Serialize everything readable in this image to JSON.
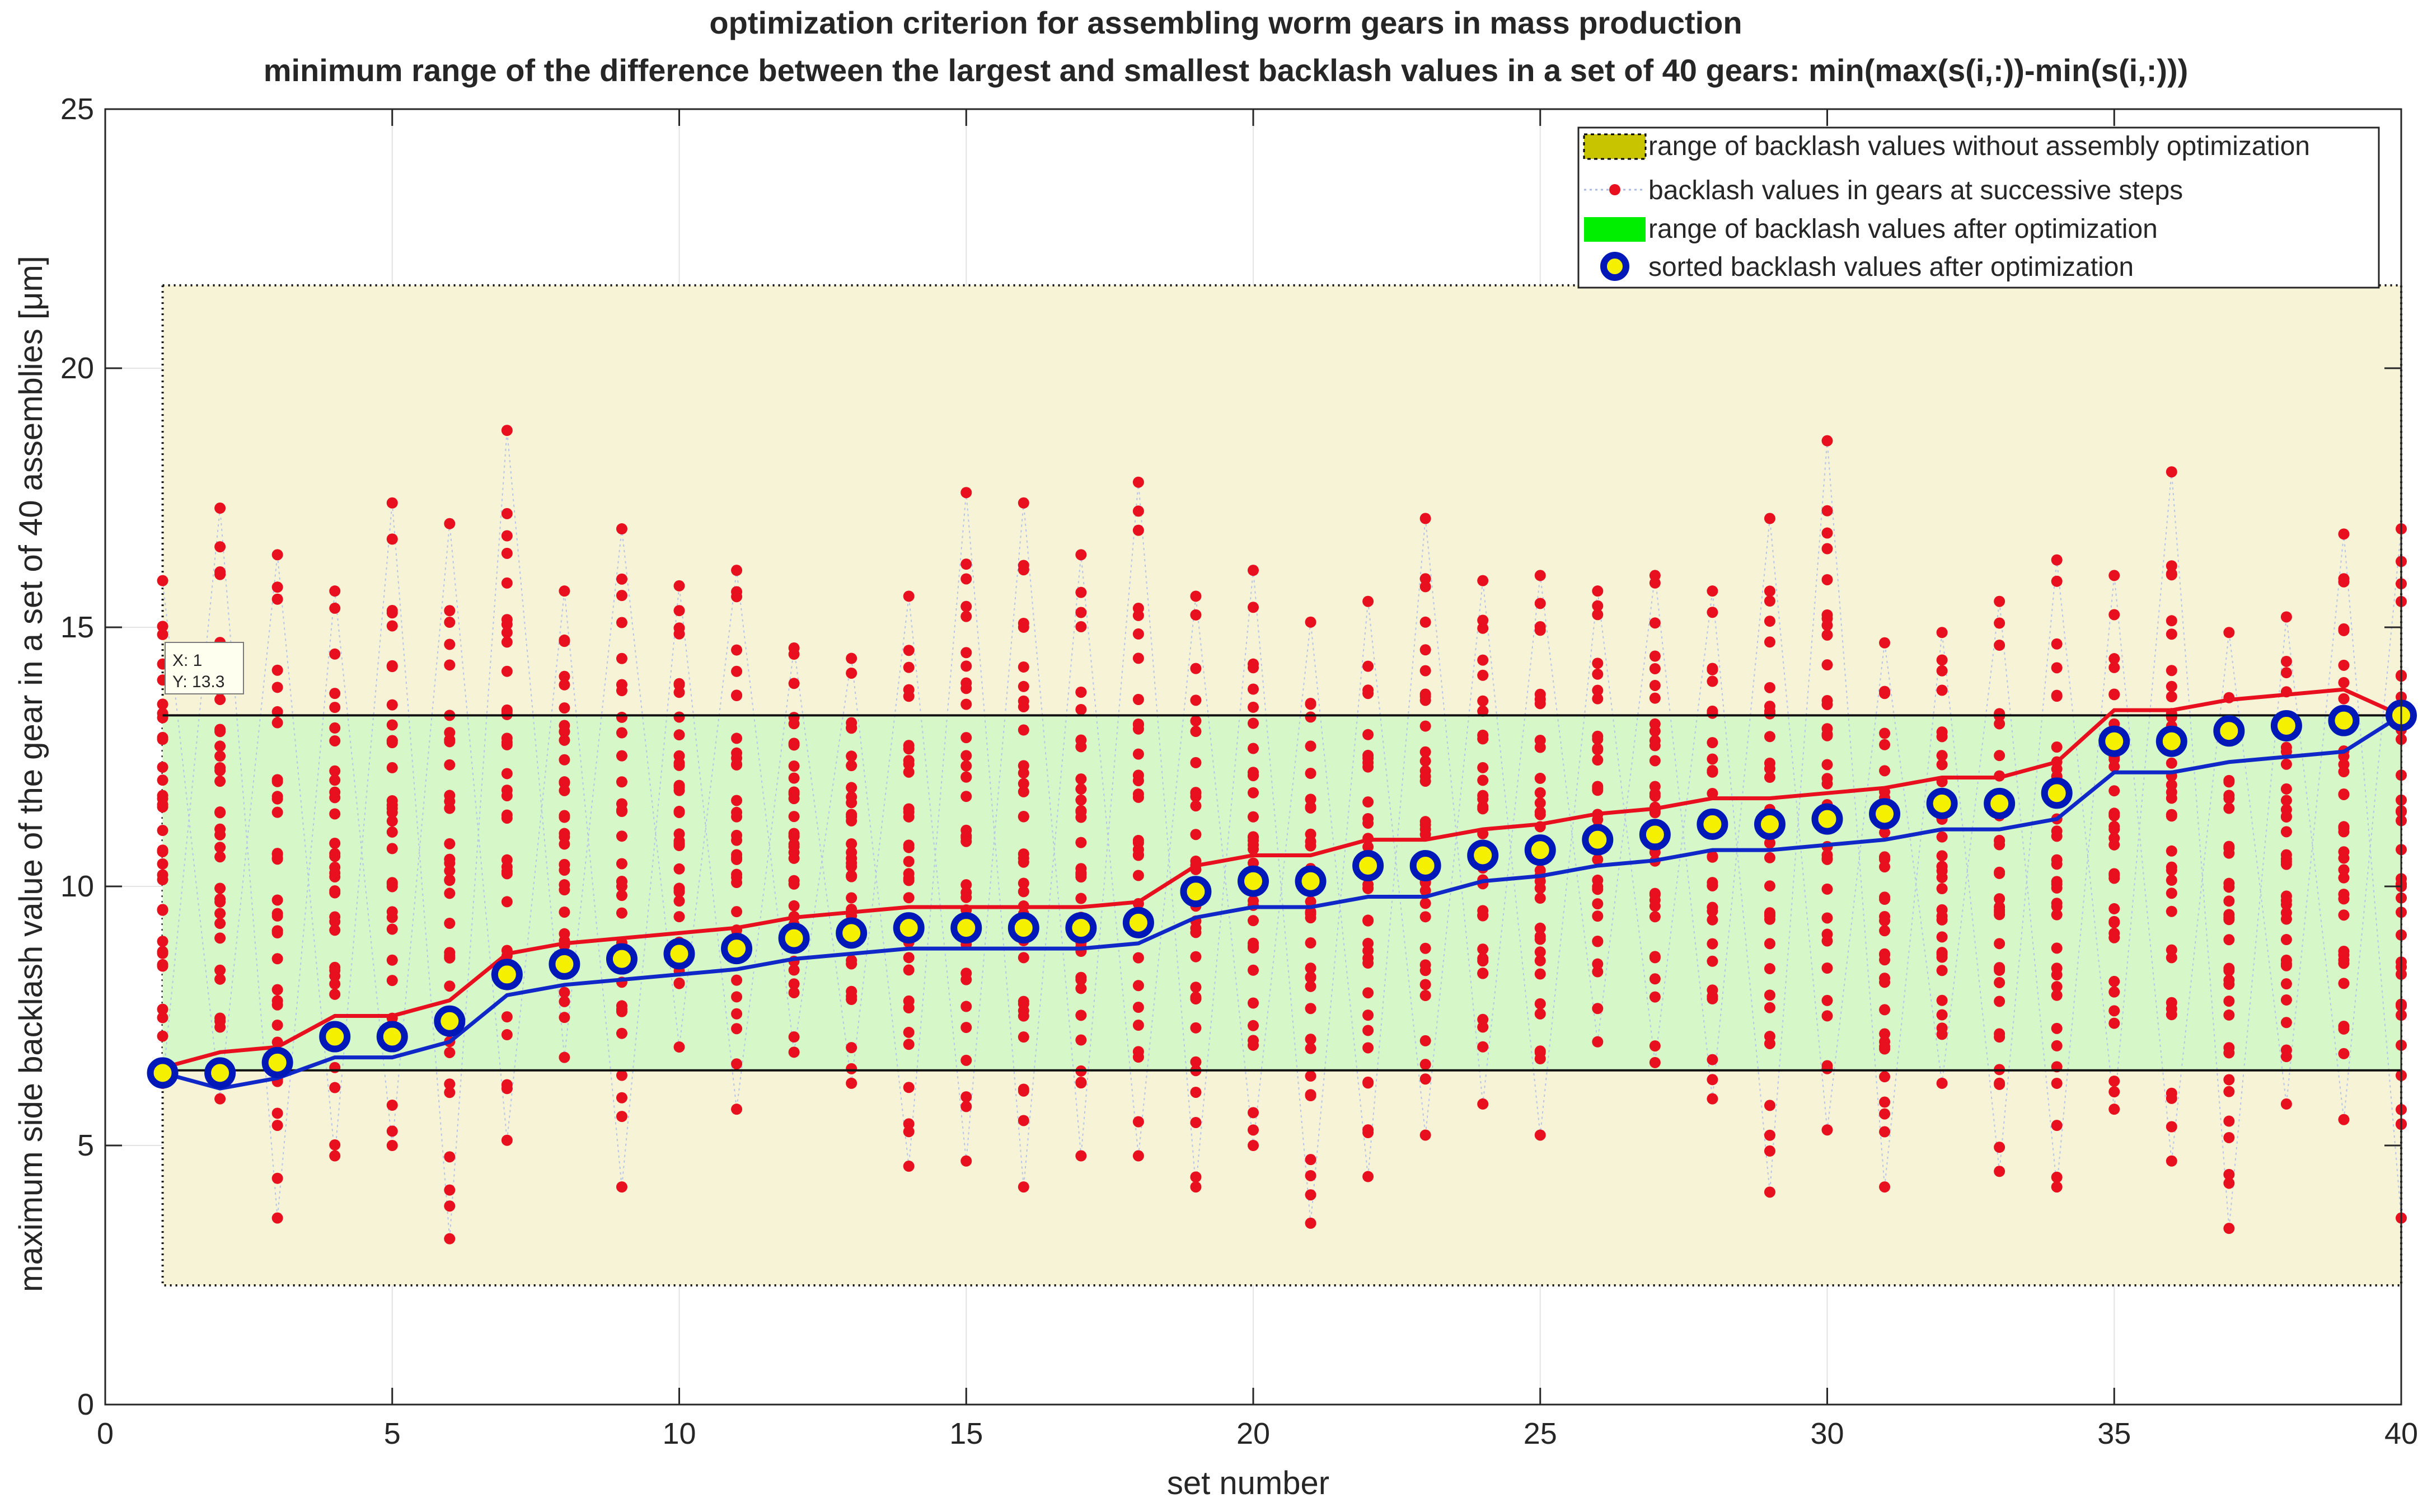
{
  "chart_data": {
    "type": "line",
    "title": "optimization criterion for assembling worm gears in mass production",
    "subtitle": "minimum range of the difference between the largest and smallest backlash values in a set of 40 gears:  min(max(s(i,:))-min(s(i,:)))",
    "xlabel": "set number",
    "ylabel": "maximum side backlash value of the gear in a set of 40 assemblies  [μm]",
    "xlim": [
      0,
      40
    ],
    "ylim": [
      0,
      25
    ],
    "xticks": [
      "0",
      "5",
      "10",
      "15",
      "20",
      "25",
      "30",
      "35",
      "40"
    ],
    "yticks": [
      "0",
      "5",
      "10",
      "15",
      "20",
      "25"
    ],
    "grid": true,
    "legend_position": "top-right",
    "legend": [
      "range of backlash values without assembly optimization",
      "backlash values in gears at successive steps",
      "range of backlash values after optimization",
      "sorted backlash values after optimization"
    ],
    "range_without_optimization": [
      2.3,
      21.6
    ],
    "range_after_optimization": [
      6.45,
      13.3
    ],
    "datatip": {
      "x_label": "X: 1",
      "y_label": "Y: 13.3",
      "x": 1,
      "y": 13.3
    },
    "x": [
      1,
      2,
      3,
      4,
      5,
      6,
      7,
      8,
      9,
      10,
      11,
      12,
      13,
      14,
      15,
      16,
      17,
      18,
      19,
      20,
      21,
      22,
      23,
      24,
      25,
      26,
      27,
      28,
      29,
      30,
      31,
      32,
      33,
      34,
      35,
      36,
      37,
      38,
      39,
      40
    ],
    "series": [
      {
        "name": "sorted backlash values after optimization",
        "values": [
          6.4,
          6.4,
          6.6,
          7.1,
          7.1,
          7.4,
          8.3,
          8.5,
          8.6,
          8.7,
          8.8,
          9.0,
          9.1,
          9.2,
          9.2,
          9.2,
          9.2,
          9.3,
          9.9,
          10.1,
          10.1,
          10.4,
          10.4,
          10.6,
          10.7,
          10.9,
          11.0,
          11.2,
          11.2,
          11.3,
          11.4,
          11.6,
          11.6,
          11.8,
          12.8,
          12.8,
          13.0,
          13.1,
          13.2,
          13.3
        ]
      },
      {
        "values": [
          6.5,
          6.8,
          6.9,
          7.5,
          7.5,
          7.8,
          8.7,
          8.9,
          9.0,
          9.1,
          9.2,
          9.4,
          9.5,
          9.6,
          9.6,
          9.6,
          9.6,
          9.7,
          10.4,
          10.6,
          10.6,
          10.9,
          10.9,
          11.1,
          11.2,
          11.4,
          11.5,
          11.7,
          11.7,
          11.8,
          11.9,
          12.1,
          12.1,
          12.4,
          13.4,
          13.4,
          13.6,
          13.7,
          13.8,
          13.3
        ]
      },
      {
        "values": [
          6.4,
          6.1,
          6.3,
          6.7,
          6.7,
          7.0,
          7.9,
          8.1,
          8.2,
          8.3,
          8.4,
          8.6,
          8.7,
          8.8,
          8.8,
          8.8,
          8.8,
          8.9,
          9.4,
          9.6,
          9.6,
          9.8,
          9.8,
          10.1,
          10.2,
          10.4,
          10.5,
          10.7,
          10.7,
          10.8,
          10.9,
          11.1,
          11.1,
          11.3,
          12.2,
          12.2,
          12.4,
          12.5,
          12.6,
          13.3
        ]
      }
    ],
    "successive_step_max": [
      15.9,
      17.3,
      16.4,
      15.7,
      17.4,
      17.0,
      18.8,
      15.7,
      16.9,
      15.8,
      16.1,
      14.6,
      14.4,
      15.6,
      17.6,
      17.4,
      16.4,
      17.8,
      15.6,
      16.1,
      15.1,
      15.5,
      17.1,
      15.9,
      16.0,
      15.7,
      16.0,
      15.7,
      17.1,
      18.6,
      14.7,
      14.9,
      15.5,
      16.3,
      16.0,
      18.0,
      14.9,
      15.2,
      16.8,
      16.9
    ],
    "successive_step_min": [
      6.2,
      5.9,
      3.6,
      4.8,
      5.0,
      3.2,
      5.1,
      6.7,
      4.2,
      6.9,
      5.7,
      6.8,
      6.2,
      4.6,
      4.7,
      4.2,
      4.8,
      4.8,
      4.2,
      5.0,
      3.5,
      4.4,
      5.2,
      5.8,
      5.2,
      7.0,
      6.6,
      5.9,
      4.1,
      5.3,
      4.2,
      6.2,
      4.5,
      4.2,
      5.7,
      4.7,
      3.4,
      5.8,
      5.5,
      3.6
    ]
  }
}
